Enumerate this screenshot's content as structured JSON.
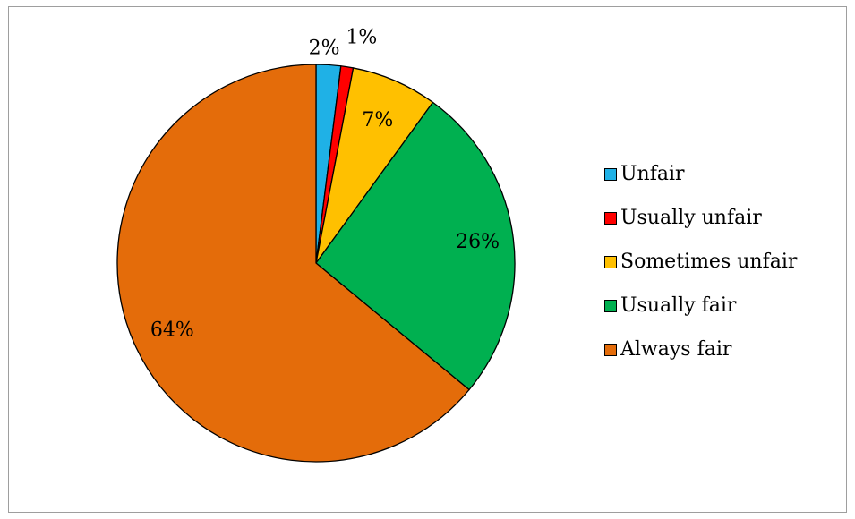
{
  "chart_data": {
    "type": "pie",
    "categories": [
      "Unfair",
      "Usually unfair",
      "Sometimes unfair",
      "Usually fair",
      "Always fair"
    ],
    "values": [
      2,
      1,
      7,
      26,
      64
    ],
    "data_labels": [
      "2%",
      "1%",
      "7%",
      "26%",
      "64%"
    ],
    "colors": [
      "#1FB1E6",
      "#FF0000",
      "#FFC000",
      "#00B050",
      "#E46C0A"
    ],
    "start_angle_deg": 0,
    "direction": "clockwise",
    "legend_position": "right"
  },
  "legend": {
    "items": [
      {
        "label": "Unfair",
        "color": "#1FB1E6"
      },
      {
        "label": "Usually unfair",
        "color": "#FF0000"
      },
      {
        "label": "Sometimes unfair",
        "color": "#FFC000"
      },
      {
        "label": "Usually fair",
        "color": "#00B050"
      },
      {
        "label": "Always fair",
        "color": "#E46C0A"
      }
    ]
  }
}
